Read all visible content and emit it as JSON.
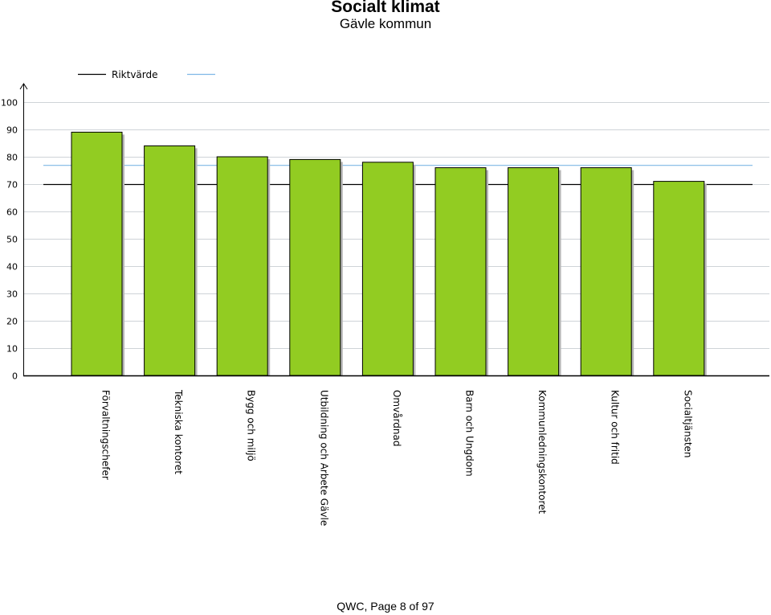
{
  "header": {
    "title": "Socialt klimat",
    "subtitle": "Gävle kommun"
  },
  "footer": {
    "page_text": "QWC, Page 8 of 97"
  },
  "chart_data": {
    "type": "bar",
    "categories": [
      "Förvaltningschefer",
      "Tekniska kontoret",
      "Bygg och miljö",
      "Utbildning och Arbete Gävle",
      "Omvårdnad",
      "Barn och Ungdom",
      "Kommunledningskontoret",
      "Kultur och fritid",
      "Socialtjänsten"
    ],
    "values": [
      89,
      84,
      80,
      79,
      78,
      76,
      76,
      76,
      71
    ],
    "ylim": [
      0,
      100
    ],
    "yticks": [
      0,
      10,
      20,
      30,
      40,
      50,
      60,
      70,
      80,
      90,
      100
    ],
    "grid": true,
    "reference_lines": [
      {
        "label": "Riktvärde",
        "value": 70,
        "color": "#000000"
      },
      {
        "label": "",
        "value": 77,
        "color": "#7fb8e6"
      }
    ],
    "legend_position": "top",
    "bar_color": "#92cc22"
  }
}
